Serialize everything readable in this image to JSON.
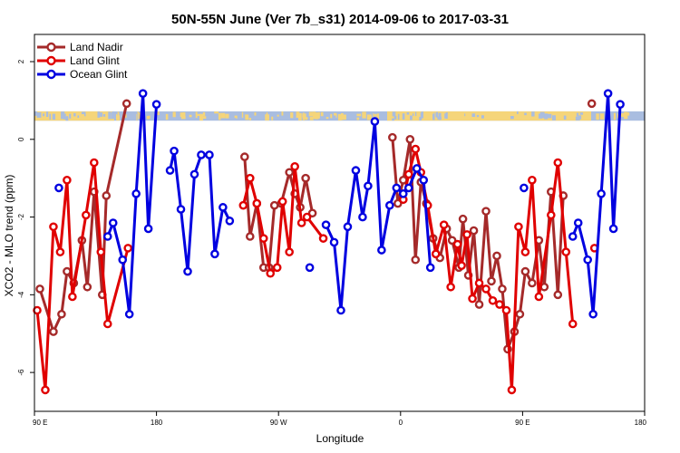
{
  "chart_data": {
    "type": "line",
    "title": "50N-55N June (Ver 7b_s31)   2014-09-06 to 2017-03-31",
    "xlabel": "Longitude",
    "ylabel": "XCO2 - MLO trend (ppm)",
    "xlim": [
      0,
      450
    ],
    "ylim": [
      -7,
      2.7
    ],
    "x_ticks": [
      {
        "value": 0,
        "label": "90 E"
      },
      {
        "value": 90,
        "label": "180"
      },
      {
        "value": 180,
        "label": "90 W"
      },
      {
        "value": 270,
        "label": "0"
      },
      {
        "value": 360,
        "label": "90 E"
      },
      {
        "value": 450,
        "label": "180"
      }
    ],
    "y_ticks": [
      {
        "value": 2,
        "label": "2"
      },
      {
        "value": 0,
        "label": "0"
      },
      {
        "value": -2,
        "label": "-2"
      },
      {
        "value": -4,
        "label": "-4"
      },
      {
        "value": -6,
        "label": "-6"
      }
    ],
    "legend_position": "top-left",
    "land_ocean_band": {
      "y_top": 0.72,
      "y_bottom": 0.48,
      "land_color": "#f5d57a",
      "ocean_color": "#a9bde0"
    },
    "series": [
      {
        "name": "Land Nadir",
        "color": "#a52a2a",
        "segments": [
          [
            [
              4,
              -3.85
            ],
            [
              14,
              -4.95
            ],
            [
              20,
              -4.5
            ],
            [
              24,
              -3.4
            ],
            [
              29,
              -3.7
            ],
            [
              35,
              -2.6
            ],
            [
              39,
              -3.8
            ],
            [
              44,
              -1.35
            ],
            [
              50,
              -4.0
            ],
            [
              53,
              -1.45
            ],
            [
              68,
              0.92
            ]
          ],
          [
            [
              155,
              -0.45
            ],
            [
              159,
              -2.5
            ],
            [
              164,
              -1.65
            ],
            [
              169,
              -3.3
            ],
            [
              173,
              -3.3
            ],
            [
              177,
              -1.7
            ],
            [
              182,
              -1.65
            ],
            [
              188,
              -0.85
            ],
            [
              192,
              -1.4
            ],
            [
              196,
              -1.75
            ],
            [
              200,
              -1.0
            ],
            [
              205,
              -1.9
            ]
          ],
          [
            [
              264,
              0.05
            ],
            [
              268,
              -1.65
            ],
            [
              272,
              -1.05
            ],
            [
              277,
              0.0
            ],
            [
              281,
              -3.1
            ],
            [
              285,
              -1.1
            ],
            [
              289,
              -1.65
            ],
            [
              294,
              -2.55
            ],
            [
              299,
              -3.05
            ],
            [
              304,
              -2.3
            ],
            [
              308,
              -2.6
            ],
            [
              313,
              -3.3
            ],
            [
              316,
              -2.05
            ],
            [
              320,
              -3.5
            ],
            [
              324,
              -2.35
            ],
            [
              328,
              -4.25
            ],
            [
              333,
              -1.85
            ],
            [
              337,
              -3.65
            ],
            [
              341,
              -3.0
            ],
            [
              345,
              -3.85
            ],
            [
              349,
              -5.4
            ],
            [
              354,
              -4.95
            ],
            [
              358,
              -4.5
            ],
            [
              362,
              -3.4
            ],
            [
              367,
              -3.7
            ],
            [
              372,
              -2.6
            ],
            [
              376,
              -3.8
            ],
            [
              381,
              -1.35
            ],
            [
              386,
              -4.0
            ],
            [
              390,
              -1.45
            ]
          ],
          [
            [
              411,
              0.92
            ]
          ]
        ]
      },
      {
        "name": "Land Glint",
        "color": "#e00000",
        "segments": [
          [
            [
              2,
              -4.4
            ],
            [
              8,
              -6.45
            ],
            [
              14,
              -2.25
            ],
            [
              19,
              -2.9
            ],
            [
              24,
              -1.05
            ],
            [
              28,
              -4.05
            ],
            [
              38,
              -1.95
            ],
            [
              44,
              -0.6
            ],
            [
              49,
              -2.9
            ],
            [
              54,
              -4.75
            ],
            [
              69,
              -2.8
            ]
          ],
          [
            [
              154,
              -1.7
            ],
            [
              159,
              -1.0
            ],
            [
              164,
              -1.65
            ],
            [
              169,
              -2.55
            ],
            [
              174,
              -3.45
            ],
            [
              179,
              -3.3
            ],
            [
              183,
              -1.6
            ],
            [
              188,
              -2.9
            ],
            [
              192,
              -0.7
            ],
            [
              197,
              -2.15
            ],
            [
              201,
              -2.0
            ],
            [
              213,
              -2.55
            ]
          ],
          [
            [
              272,
              -1.55
            ],
            [
              276,
              -0.9
            ],
            [
              281,
              -0.25
            ],
            [
              285,
              -0.85
            ],
            [
              290,
              -1.7
            ],
            [
              296,
              -2.95
            ],
            [
              302,
              -2.2
            ],
            [
              307,
              -3.8
            ],
            [
              312,
              -2.7
            ],
            [
              315,
              -3.25
            ],
            [
              319,
              -2.45
            ],
            [
              323,
              -4.1
            ],
            [
              328,
              -3.7
            ],
            [
              333,
              -3.85
            ],
            [
              338,
              -4.15
            ],
            [
              343,
              -4.25
            ],
            [
              348,
              -4.4
            ],
            [
              352,
              -6.45
            ],
            [
              357,
              -2.25
            ],
            [
              362,
              -2.9
            ],
            [
              367,
              -1.05
            ],
            [
              372,
              -4.05
            ],
            [
              381,
              -1.95
            ],
            [
              386,
              -0.6
            ],
            [
              392,
              -2.9
            ],
            [
              397,
              -4.75
            ]
          ],
          [
            [
              413,
              -2.8
            ]
          ]
        ]
      },
      {
        "name": "Ocean Glint",
        "color": "#0000e0",
        "segments": [
          [
            [
              18,
              -1.25
            ]
          ],
          [
            [
              54,
              -2.5
            ],
            [
              58,
              -2.15
            ],
            [
              65,
              -3.1
            ],
            [
              70,
              -4.5
            ],
            [
              75,
              -1.4
            ],
            [
              80,
              1.18
            ],
            [
              84,
              -2.3
            ],
            [
              90,
              0.9
            ]
          ],
          [
            [
              100,
              -0.8
            ],
            [
              103,
              -0.3
            ],
            [
              108,
              -1.8
            ],
            [
              113,
              -3.4
            ],
            [
              118,
              -0.9
            ],
            [
              123,
              -0.4
            ],
            [
              129,
              -0.4
            ],
            [
              133,
              -2.95
            ],
            [
              139,
              -1.75
            ],
            [
              144,
              -2.1
            ]
          ],
          [
            [
              203,
              -3.3
            ]
          ],
          [
            [
              215,
              -2.2
            ],
            [
              221,
              -2.65
            ],
            [
              226,
              -4.4
            ],
            [
              231,
              -2.25
            ],
            [
              237,
              -0.8
            ],
            [
              242,
              -2.0
            ],
            [
              246,
              -1.2
            ],
            [
              251,
              0.46
            ],
            [
              256,
              -2.85
            ],
            [
              262,
              -1.7
            ],
            [
              267,
              -1.25
            ],
            [
              272,
              -1.4
            ],
            [
              276,
              -1.25
            ],
            [
              282,
              -0.75
            ],
            [
              287,
              -1.05
            ],
            [
              292,
              -3.3
            ]
          ],
          [
            [
              361,
              -1.25
            ]
          ],
          [
            [
              397,
              -2.5
            ],
            [
              401,
              -2.15
            ],
            [
              408,
              -3.1
            ],
            [
              412,
              -4.5
            ],
            [
              418,
              -1.4
            ],
            [
              423,
              1.18
            ],
            [
              427,
              -2.3
            ],
            [
              432,
              0.9
            ]
          ]
        ]
      }
    ]
  }
}
